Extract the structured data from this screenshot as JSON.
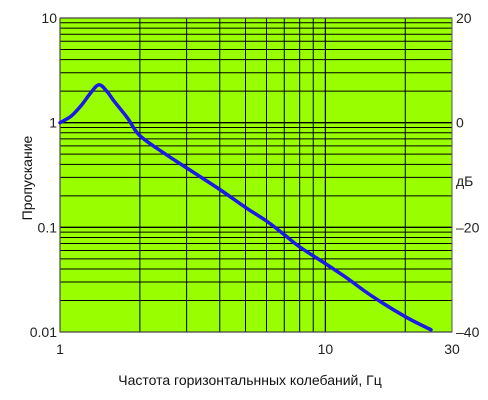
{
  "chart_data": {
    "type": "line",
    "xlabel": "Частота горизонтальнных колебаний, Гц",
    "ylabel": "Пропускание",
    "y2label": "дБ",
    "x_scale": "log",
    "y_scale": "log",
    "xlim": [
      1,
      30
    ],
    "ylim": [
      0.01,
      10
    ],
    "y2lim": [
      -40,
      20
    ],
    "grid": true,
    "colors": {
      "plot_bg": "#99FF00",
      "grid": "#000000",
      "line": "#1A1AE6"
    },
    "x_ticks": [
      {
        "value": 1,
        "label": "1"
      },
      {
        "value": 10,
        "label": "10"
      },
      {
        "value": 30,
        "label": "30"
      }
    ],
    "y_ticks": [
      {
        "value": 10,
        "label": "10"
      },
      {
        "value": 1,
        "label": "1"
      },
      {
        "value": 0.1,
        "label": "0.1"
      },
      {
        "value": 0.01,
        "label": "0.01"
      }
    ],
    "y2_ticks": [
      {
        "value": 20,
        "label": "20"
      },
      {
        "value": 0,
        "label": "0"
      },
      {
        "value": -20,
        "label": "–20"
      },
      {
        "value": -40,
        "label": "–40"
      }
    ],
    "series": [
      {
        "x": [
          1.0,
          1.1,
          1.2,
          1.3,
          1.4,
          1.5,
          1.6,
          1.8,
          2.0,
          2.5,
          3.0,
          4.0,
          5.0,
          6.0,
          7.0,
          8.0,
          10.0,
          12.0,
          15.0,
          20.0,
          25.0
        ],
        "y": [
          1.0,
          1.15,
          1.45,
          1.9,
          2.3,
          2.0,
          1.6,
          1.1,
          0.75,
          0.5,
          0.37,
          0.23,
          0.155,
          0.115,
          0.085,
          0.065,
          0.045,
          0.033,
          0.022,
          0.014,
          0.0105
        ]
      }
    ]
  }
}
